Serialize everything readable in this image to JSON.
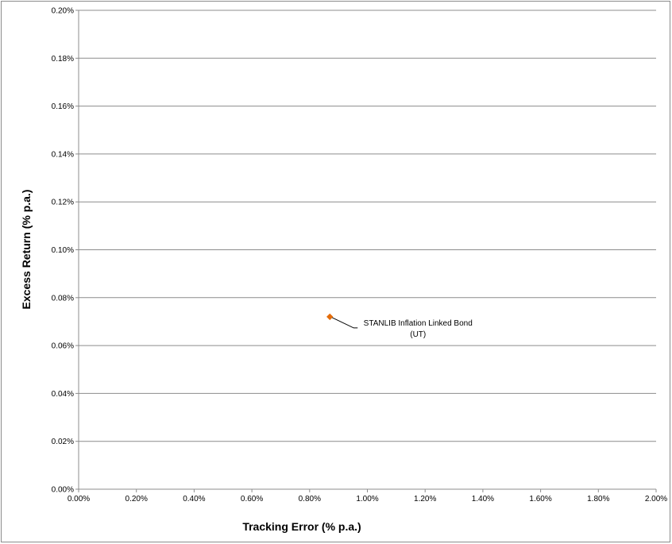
{
  "chart_data": {
    "type": "scatter",
    "xlabel": "Tracking Error (% p.a.)",
    "ylabel": "Excess Return (% p.a.)",
    "xlim": [
      0.0,
      2.0
    ],
    "ylim": [
      0.0,
      0.2
    ],
    "x_ticks": [
      "0.00%",
      "0.20%",
      "0.40%",
      "0.60%",
      "0.80%",
      "1.00%",
      "1.20%",
      "1.40%",
      "1.60%",
      "1.80%",
      "2.00%"
    ],
    "y_ticks": [
      "0.00%",
      "0.02%",
      "0.04%",
      "0.06%",
      "0.08%",
      "0.10%",
      "0.12%",
      "0.14%",
      "0.16%",
      "0.18%",
      "0.20%"
    ],
    "grid": "horizontal",
    "legend": "none",
    "points": [
      {
        "x": 0.87,
        "y": 0.072,
        "label_lines": [
          "STANLIB Inflation Linked Bond",
          "(UT)"
        ],
        "color": "#e46c0a"
      }
    ],
    "colors": {
      "gridline": "#8c8c8c",
      "axis": "#8c8c8c",
      "marker": "#e46c0a"
    }
  }
}
